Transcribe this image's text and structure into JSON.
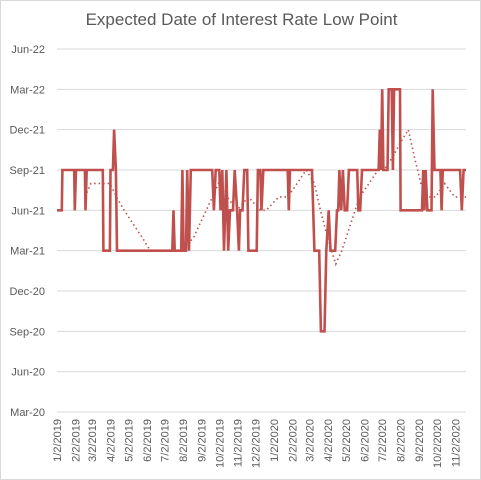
{
  "chart_data": {
    "type": "line",
    "title": "Expected Date of Interest Rate Low Point",
    "xlabel": "",
    "ylabel": "",
    "grid": true,
    "y_ticks": [
      "Mar-20",
      "Jun-20",
      "Sep-20",
      "Dec-20",
      "Mar-21",
      "Jun-21",
      "Sep-21",
      "Dec-21",
      "Mar-22",
      "Jun-22"
    ],
    "x_ticks": [
      "1/2/2019",
      "2/2/2019",
      "3/2/2019",
      "4/2/2019",
      "5/2/2019",
      "6/2/2019",
      "7/2/2019",
      "8/2/2019",
      "9/2/2019",
      "10/2/2019",
      "11/2/2019",
      "12/2/2019",
      "1/2/2020",
      "2/2/2020",
      "3/2/2020",
      "4/2/2020",
      "5/2/2020",
      "6/2/2020",
      "7/2/2020",
      "8/2/2020",
      "9/2/2020",
      "10/2/2020",
      "11/2/2020"
    ],
    "series": [
      {
        "kind": "actual",
        "color": "#c0504d",
        "values": [
          [
            "2019-01-02",
            "Jun-21"
          ],
          [
            "2019-01-10",
            "Jun-21"
          ],
          [
            "2019-01-11",
            "Sep-21"
          ],
          [
            "2019-01-31",
            "Sep-21"
          ],
          [
            "2019-02-01",
            "Jun-21"
          ],
          [
            "2019-02-03",
            "Sep-21"
          ],
          [
            "2019-02-18",
            "Sep-21"
          ],
          [
            "2019-02-19",
            "Jun-21"
          ],
          [
            "2019-02-21",
            "Sep-21"
          ],
          [
            "2019-03-20",
            "Sep-21"
          ],
          [
            "2019-03-21",
            "Mar-21"
          ],
          [
            "2019-04-01",
            "Mar-21"
          ],
          [
            "2019-04-02",
            "Sep-21"
          ],
          [
            "2019-04-06",
            "Sep-21"
          ],
          [
            "2019-04-08",
            "Dec-21"
          ],
          [
            "2019-04-11",
            "Sep-21"
          ],
          [
            "2019-04-13",
            "Mar-21"
          ],
          [
            "2019-07-15",
            "Mar-21"
          ],
          [
            "2019-07-17",
            "Jun-21"
          ],
          [
            "2019-07-19",
            "Mar-21"
          ],
          [
            "2019-07-30",
            "Mar-21"
          ],
          [
            "2019-08-01",
            "Sep-21"
          ],
          [
            "2019-08-03",
            "Mar-21"
          ],
          [
            "2019-08-07",
            "Mar-21"
          ],
          [
            "2019-08-09",
            "Sep-21"
          ],
          [
            "2019-08-12",
            "Mar-21"
          ],
          [
            "2019-08-15",
            "Sep-21"
          ],
          [
            "2019-09-20",
            "Sep-21"
          ],
          [
            "2019-09-23",
            "Jun-21"
          ],
          [
            "2019-09-26",
            "Sep-21"
          ],
          [
            "2019-10-02",
            "Sep-21"
          ],
          [
            "2019-10-04",
            "Jun-21"
          ],
          [
            "2019-10-07",
            "Sep-21"
          ],
          [
            "2019-10-10",
            "Mar-21"
          ],
          [
            "2019-10-14",
            "Sep-21"
          ],
          [
            "2019-10-17",
            "Mar-21"
          ],
          [
            "2019-10-20",
            "Jun-21"
          ],
          [
            "2019-10-25",
            "Jun-21"
          ],
          [
            "2019-10-28",
            "Sep-21"
          ],
          [
            "2019-11-01",
            "Jun-21"
          ],
          [
            "2019-11-04",
            "Mar-21"
          ],
          [
            "2019-11-06",
            "Jun-21"
          ],
          [
            "2019-11-10",
            "Jun-21"
          ],
          [
            "2019-11-13",
            "Sep-21"
          ],
          [
            "2019-11-18",
            "Sep-21"
          ],
          [
            "2019-11-20",
            "Mar-21"
          ],
          [
            "2019-12-04",
            "Mar-21"
          ],
          [
            "2019-12-06",
            "Sep-21"
          ],
          [
            "2019-12-10",
            "Sep-21"
          ],
          [
            "2019-12-12",
            "Jun-21"
          ],
          [
            "2019-12-15",
            "Sep-21"
          ],
          [
            "2020-01-25",
            "Sep-21"
          ],
          [
            "2020-01-27",
            "Jun-21"
          ],
          [
            "2020-01-29",
            "Sep-21"
          ],
          [
            "2020-03-06",
            "Sep-21"
          ],
          [
            "2020-03-10",
            "Mar-21"
          ],
          [
            "2020-03-18",
            "Mar-21"
          ],
          [
            "2020-03-21",
            "Sep-20"
          ],
          [
            "2020-03-27",
            "Sep-20"
          ],
          [
            "2020-03-30",
            "Mar-21"
          ],
          [
            "2020-04-03",
            "Jun-21"
          ],
          [
            "2020-04-06",
            "Mar-21"
          ],
          [
            "2020-04-14",
            "Mar-21"
          ],
          [
            "2020-04-17",
            "Jun-21"
          ],
          [
            "2020-04-19",
            "Jun-21"
          ],
          [
            "2020-04-21",
            "Sep-21"
          ],
          [
            "2020-04-24",
            "Jun-21"
          ],
          [
            "2020-04-27",
            "Sep-21"
          ],
          [
            "2020-04-30",
            "Jun-21"
          ],
          [
            "2020-05-04",
            "Jun-21"
          ],
          [
            "2020-05-07",
            "Sep-21"
          ],
          [
            "2020-05-21",
            "Sep-21"
          ],
          [
            "2020-05-23",
            "Jun-21"
          ],
          [
            "2020-05-26",
            "Jun-21"
          ],
          [
            "2020-05-29",
            "Sep-21"
          ],
          [
            "2020-06-26",
            "Sep-21"
          ],
          [
            "2020-06-28",
            "Dec-21"
          ],
          [
            "2020-06-30",
            "Sep-21"
          ],
          [
            "2020-07-02",
            "Mar-22"
          ],
          [
            "2020-07-04",
            "Sep-21"
          ],
          [
            "2020-07-11",
            "Sep-21"
          ],
          [
            "2020-07-13",
            "Mar-22"
          ],
          [
            "2020-07-18",
            "Mar-22"
          ],
          [
            "2020-07-20",
            "Sep-21"
          ],
          [
            "2020-07-22",
            "Mar-22"
          ],
          [
            "2020-08-01",
            "Mar-22"
          ],
          [
            "2020-08-02",
            "Jun-21"
          ],
          [
            "2020-09-07",
            "Jun-21"
          ],
          [
            "2020-09-09",
            "Sep-21"
          ],
          [
            "2020-09-11",
            "Jun-21"
          ],
          [
            "2020-09-13",
            "Sep-21"
          ],
          [
            "2020-09-16",
            "Jun-21"
          ],
          [
            "2020-09-23",
            "Jun-21"
          ],
          [
            "2020-09-25",
            "Mar-22"
          ],
          [
            "2020-09-28",
            "Sep-21"
          ],
          [
            "2020-10-08",
            "Sep-21"
          ],
          [
            "2020-10-10",
            "Jun-21"
          ],
          [
            "2020-10-12",
            "Sep-21"
          ],
          [
            "2020-11-10",
            "Sep-21"
          ],
          [
            "2020-11-13",
            "Jun-21"
          ],
          [
            "2020-11-16",
            "Sep-21"
          ],
          [
            "2020-11-20",
            "Sep-21"
          ]
        ]
      },
      {
        "kind": "trend",
        "style": "dotted",
        "color": "#c0504d",
        "values": [
          [
            "2019-02-18",
            "Jul-21"
          ],
          [
            "2019-02-28",
            "Aug-21"
          ],
          [
            "2019-03-15",
            "Aug-21"
          ],
          [
            "2019-04-01",
            "Aug-21"
          ],
          [
            "2019-04-12",
            "Jul-21"
          ],
          [
            "2019-04-25",
            "Jun-21"
          ],
          [
            "2019-05-10",
            "May-21"
          ],
          [
            "2019-05-25",
            "Apr-21"
          ],
          [
            "2019-06-08",
            "Mar-21"
          ],
          [
            "2019-06-20",
            "Mar-21"
          ],
          [
            "2019-07-10",
            "Mar-21"
          ],
          [
            "2019-08-01",
            "Mar-21"
          ],
          [
            "2019-08-20",
            "Apr-21"
          ],
          [
            "2019-09-10",
            "Jun-21"
          ],
          [
            "2019-10-01",
            "Aug-21"
          ],
          [
            "2019-10-15",
            "Jul-21"
          ],
          [
            "2019-11-01",
            "Jun-21"
          ],
          [
            "2019-11-20",
            "Jul-21"
          ],
          [
            "2019-12-10",
            "Jun-21"
          ],
          [
            "2019-12-20",
            "Jun-21"
          ],
          [
            "2020-01-10",
            "Jul-21"
          ],
          [
            "2020-01-25",
            "Jul-21"
          ],
          [
            "2020-02-10",
            "Aug-21"
          ],
          [
            "2020-02-25",
            "Sep-21"
          ],
          [
            "2020-03-10",
            "Aug-21"
          ],
          [
            "2020-03-20",
            "Jun-21"
          ],
          [
            "2020-04-01",
            "Apr-21"
          ],
          [
            "2020-04-15",
            "Feb-21"
          ],
          [
            "2020-04-25",
            "Mar-21"
          ],
          [
            "2020-05-10",
            "May-21"
          ],
          [
            "2020-05-25",
            "Jul-21"
          ],
          [
            "2020-06-10",
            "Aug-21"
          ],
          [
            "2020-06-25",
            "Sep-21"
          ],
          [
            "2020-07-05",
            "Sep-21"
          ],
          [
            "2020-07-20",
            "Oct-21"
          ],
          [
            "2020-08-01",
            "Nov-21"
          ],
          [
            "2020-08-15",
            "Dec-21"
          ],
          [
            "2020-08-25",
            "Oct-21"
          ],
          [
            "2020-09-05",
            "Aug-21"
          ],
          [
            "2020-09-15",
            "Jul-21"
          ],
          [
            "2020-09-30",
            "Jul-21"
          ],
          [
            "2020-10-15",
            "Aug-21"
          ],
          [
            "2020-11-01",
            "Jul-21"
          ],
          [
            "2020-11-20",
            "Jul-21"
          ]
        ]
      }
    ]
  }
}
